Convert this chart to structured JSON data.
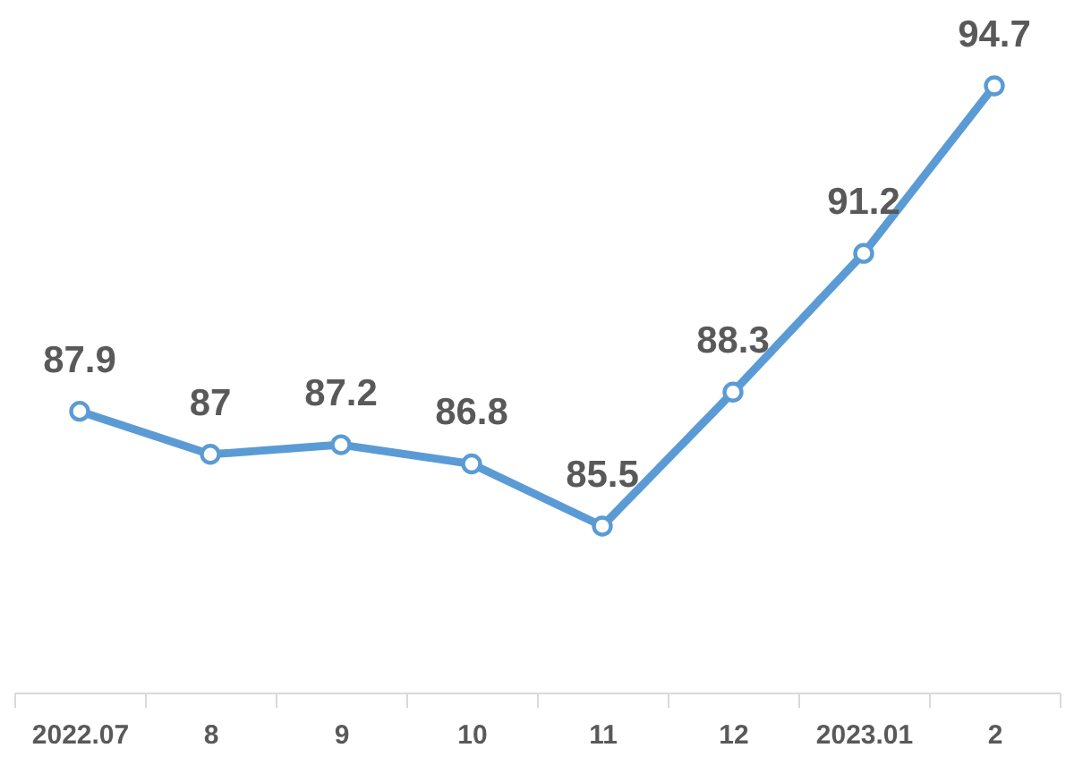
{
  "chart_data": {
    "type": "line",
    "categories": [
      "2022.07",
      "8",
      "9",
      "10",
      "11",
      "12",
      "2023.01",
      "2"
    ],
    "series": [
      {
        "color": "#5b9bd5",
        "values": [
          87.9,
          87,
          87.2,
          86.8,
          85.5,
          88.3,
          91.2,
          94.7
        ]
      }
    ],
    "data_labels": true,
    "marker": "circle",
    "line_style": "solid"
  }
}
